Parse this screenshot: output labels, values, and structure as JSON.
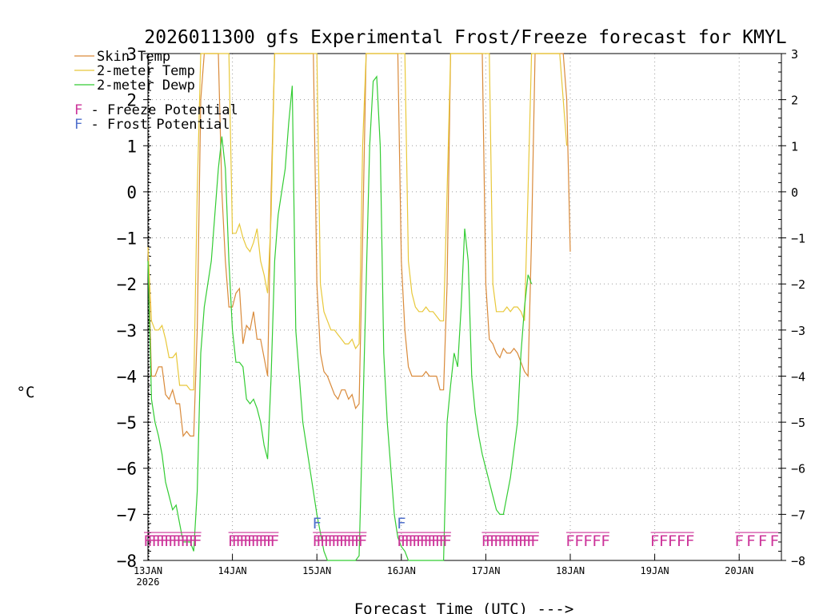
{
  "chart_data": {
    "type": "line",
    "title": "2026011300 gfs Experimental Frost/Freeze forecast for KMYL",
    "xlabel": "Forecast Time (UTC) --->",
    "ylabel": "°C",
    "ylim": [
      -8,
      3
    ],
    "xlim_hours": [
      0,
      180
    ],
    "grid": true,
    "y_ticks": [
      3,
      2,
      1,
      0,
      -1,
      -2,
      -3,
      -4,
      -5,
      -6,
      -7,
      -8
    ],
    "x_ticks": [
      {
        "hour": 0,
        "label": "13JAN",
        "sub": "2026"
      },
      {
        "hour": 24,
        "label": "14JAN",
        "sub": ""
      },
      {
        "hour": 48,
        "label": "15JAN",
        "sub": ""
      },
      {
        "hour": 72,
        "label": "16JAN",
        "sub": ""
      },
      {
        "hour": 96,
        "label": "17JAN",
        "sub": ""
      },
      {
        "hour": 120,
        "label": "18JAN",
        "sub": ""
      },
      {
        "hour": 144,
        "label": "19JAN",
        "sub": ""
      },
      {
        "hour": 168,
        "label": "20JAN",
        "sub": ""
      }
    ],
    "legend": [
      {
        "label": "Skin Temp",
        "color": "#d98a3a"
      },
      {
        "label": "2-meter Temp",
        "color": "#e8c83a"
      },
      {
        "label": "2-meter Dewp",
        "color": "#33cc33"
      }
    ],
    "potential_legend": [
      {
        "glyph": "F",
        "label": " - Freeze Potential",
        "color": "#cc3399"
      },
      {
        "glyph": "F",
        "label": " - Frost Potential",
        "color": "#4f6fcc"
      }
    ],
    "series": [
      {
        "name": "Skin Temp",
        "color": "#d98a3a",
        "points": [
          [
            0,
            -1.2
          ],
          [
            1,
            -4.0
          ],
          [
            2,
            -4.0
          ],
          [
            3,
            -3.8
          ],
          [
            4,
            -3.8
          ],
          [
            5,
            -4.4
          ],
          [
            6,
            -4.5
          ],
          [
            7,
            -4.3
          ],
          [
            8,
            -4.6
          ],
          [
            9,
            -4.6
          ],
          [
            10,
            -5.3
          ],
          [
            11,
            -5.2
          ],
          [
            12,
            -5.3
          ],
          [
            13,
            -5.3
          ],
          [
            14,
            -3.0
          ],
          [
            15,
            2.0
          ],
          [
            16,
            3.2
          ],
          [
            17,
            3.2
          ],
          [
            20,
            3.2
          ],
          [
            21,
            0.0
          ],
          [
            22,
            -1.5
          ],
          [
            23,
            -2.5
          ],
          [
            24,
            -2.5
          ],
          [
            25,
            -2.2
          ],
          [
            26,
            -2.1
          ],
          [
            27,
            -3.3
          ],
          [
            28,
            -2.9
          ],
          [
            29,
            -3.0
          ],
          [
            30,
            -2.6
          ],
          [
            31,
            -3.2
          ],
          [
            32,
            -3.2
          ],
          [
            33,
            -3.6
          ],
          [
            34,
            -4.0
          ],
          [
            35,
            0.0
          ],
          [
            36,
            3.2
          ],
          [
            47,
            3.2
          ],
          [
            48,
            -2.0
          ],
          [
            49,
            -3.5
          ],
          [
            50,
            -3.9
          ],
          [
            51,
            -4.0
          ],
          [
            52,
            -4.2
          ],
          [
            53,
            -4.4
          ],
          [
            54,
            -4.5
          ],
          [
            55,
            -4.3
          ],
          [
            56,
            -4.3
          ],
          [
            57,
            -4.5
          ],
          [
            58,
            -4.4
          ],
          [
            59,
            -4.7
          ],
          [
            60,
            -4.6
          ],
          [
            61,
            -1.0
          ],
          [
            62,
            3.2
          ],
          [
            71,
            3.2
          ],
          [
            72,
            -1.5
          ],
          [
            73,
            -3.0
          ],
          [
            74,
            -3.8
          ],
          [
            75,
            -4.0
          ],
          [
            76,
            -4.0
          ],
          [
            77,
            -4.0
          ],
          [
            78,
            -4.0
          ],
          [
            79,
            -3.9
          ],
          [
            80,
            -4.0
          ],
          [
            81,
            -4.0
          ],
          [
            82,
            -4.0
          ],
          [
            83,
            -4.3
          ],
          [
            84,
            -4.3
          ],
          [
            85,
            -2.0
          ],
          [
            86,
            3.2
          ],
          [
            95,
            3.2
          ],
          [
            96,
            -2.0
          ],
          [
            97,
            -3.2
          ],
          [
            98,
            -3.3
          ],
          [
            99,
            -3.5
          ],
          [
            100,
            -3.6
          ],
          [
            101,
            -3.4
          ],
          [
            102,
            -3.5
          ],
          [
            103,
            -3.5
          ],
          [
            104,
            -3.4
          ],
          [
            105,
            -3.5
          ],
          [
            106,
            -3.7
          ],
          [
            107,
            -3.9
          ],
          [
            108,
            -4.0
          ],
          [
            109,
            -1.0
          ],
          [
            110,
            3.2
          ],
          [
            118,
            3.2
          ],
          [
            119,
            2.0
          ],
          [
            120,
            -1.3
          ]
        ]
      },
      {
        "name": "2-meter Temp",
        "color": "#e8c83a",
        "points": [
          [
            0,
            -1.2
          ],
          [
            1,
            -2.8
          ],
          [
            2,
            -3.0
          ],
          [
            3,
            -3.0
          ],
          [
            4,
            -2.9
          ],
          [
            5,
            -3.2
          ],
          [
            6,
            -3.6
          ],
          [
            7,
            -3.6
          ],
          [
            8,
            -3.5
          ],
          [
            9,
            -4.2
          ],
          [
            10,
            -4.2
          ],
          [
            11,
            -4.2
          ],
          [
            12,
            -4.3
          ],
          [
            13,
            -4.3
          ],
          [
            14,
            0.0
          ],
          [
            15,
            3.2
          ],
          [
            23,
            3.2
          ],
          [
            24,
            -0.9
          ],
          [
            25,
            -0.9
          ],
          [
            26,
            -0.7
          ],
          [
            27,
            -1.0
          ],
          [
            28,
            -1.2
          ],
          [
            29,
            -1.3
          ],
          [
            30,
            -1.1
          ],
          [
            31,
            -0.8
          ],
          [
            32,
            -1.5
          ],
          [
            33,
            -1.8
          ],
          [
            34,
            -2.2
          ],
          [
            35,
            -0.5
          ],
          [
            36,
            3.2
          ],
          [
            48,
            3.2
          ],
          [
            49,
            -2.0
          ],
          [
            50,
            -2.6
          ],
          [
            51,
            -2.8
          ],
          [
            52,
            -3.0
          ],
          [
            53,
            -3.0
          ],
          [
            54,
            -3.1
          ],
          [
            55,
            -3.2
          ],
          [
            56,
            -3.3
          ],
          [
            57,
            -3.3
          ],
          [
            58,
            -3.2
          ],
          [
            59,
            -3.4
          ],
          [
            60,
            -3.3
          ],
          [
            61,
            1.0
          ],
          [
            62,
            3.2
          ],
          [
            73,
            3.2
          ],
          [
            74,
            -1.5
          ],
          [
            75,
            -2.2
          ],
          [
            76,
            -2.5
          ],
          [
            77,
            -2.6
          ],
          [
            78,
            -2.6
          ],
          [
            79,
            -2.5
          ],
          [
            80,
            -2.6
          ],
          [
            81,
            -2.6
          ],
          [
            82,
            -2.7
          ],
          [
            83,
            -2.8
          ],
          [
            84,
            -2.8
          ],
          [
            85,
            0.0
          ],
          [
            86,
            3.2
          ],
          [
            97,
            3.2
          ],
          [
            98,
            -2.0
          ],
          [
            99,
            -2.6
          ],
          [
            100,
            -2.6
          ],
          [
            101,
            -2.6
          ],
          [
            102,
            -2.5
          ],
          [
            103,
            -2.6
          ],
          [
            104,
            -2.5
          ],
          [
            105,
            -2.5
          ],
          [
            106,
            -2.6
          ],
          [
            107,
            -2.8
          ],
          [
            108,
            0.0
          ],
          [
            109,
            3.2
          ],
          [
            117,
            3.2
          ],
          [
            118,
            2.0
          ],
          [
            119,
            1.0
          ]
        ]
      },
      {
        "name": "2-meter Dewp",
        "color": "#33cc33",
        "points": [
          [
            0,
            -1.5
          ],
          [
            1,
            -4.5
          ],
          [
            2,
            -5.0
          ],
          [
            3,
            -5.3
          ],
          [
            4,
            -5.7
          ],
          [
            5,
            -6.3
          ],
          [
            6,
            -6.6
          ],
          [
            7,
            -6.9
          ],
          [
            8,
            -6.8
          ],
          [
            9,
            -7.2
          ],
          [
            10,
            -7.6
          ],
          [
            11,
            -7.6
          ],
          [
            12,
            -7.6
          ],
          [
            13,
            -7.8
          ],
          [
            14,
            -6.5
          ],
          [
            15,
            -3.5
          ],
          [
            16,
            -2.5
          ],
          [
            17,
            -2.0
          ],
          [
            18,
            -1.5
          ],
          [
            19,
            -0.5
          ],
          [
            20,
            0.5
          ],
          [
            21,
            1.2
          ],
          [
            22,
            0.5
          ],
          [
            23,
            -1.5
          ],
          [
            24,
            -3.0
          ],
          [
            25,
            -3.7
          ],
          [
            26,
            -3.7
          ],
          [
            27,
            -3.8
          ],
          [
            28,
            -4.5
          ],
          [
            29,
            -4.6
          ],
          [
            30,
            -4.5
          ],
          [
            31,
            -4.7
          ],
          [
            32,
            -5.0
          ],
          [
            33,
            -5.5
          ],
          [
            34,
            -5.8
          ],
          [
            35,
            -4.0
          ],
          [
            36,
            -1.5
          ],
          [
            37,
            -0.5
          ],
          [
            38,
            0.0
          ],
          [
            39,
            0.5
          ],
          [
            40,
            1.5
          ],
          [
            41,
            2.3
          ],
          [
            42,
            -3.0
          ],
          [
            43,
            -4.0
          ],
          [
            44,
            -5.0
          ],
          [
            45,
            -5.5
          ],
          [
            46,
            -6.0
          ],
          [
            47,
            -6.5
          ],
          [
            48,
            -7.0
          ],
          [
            49,
            -7.4
          ],
          [
            50,
            -7.8
          ],
          [
            51,
            -8.0
          ],
          [
            52,
            -8.0
          ],
          [
            53,
            -8.0
          ],
          [
            54,
            -8.0
          ],
          [
            55,
            -8.0
          ],
          [
            56,
            -8.0
          ],
          [
            57,
            -8.0
          ],
          [
            58,
            -8.0
          ],
          [
            59,
            -8.0
          ],
          [
            60,
            -7.9
          ],
          [
            61,
            -5.0
          ],
          [
            62,
            -2.0
          ],
          [
            63,
            1.0
          ],
          [
            64,
            2.4
          ],
          [
            65,
            2.5
          ],
          [
            66,
            1.0
          ],
          [
            67,
            -3.5
          ],
          [
            68,
            -5.0
          ],
          [
            69,
            -6.0
          ],
          [
            70,
            -7.0
          ],
          [
            71,
            -7.5
          ],
          [
            72,
            -7.7
          ],
          [
            73,
            -7.8
          ],
          [
            74,
            -8.0
          ],
          [
            75,
            -8.0
          ],
          [
            76,
            -8.0
          ],
          [
            77,
            -8.0
          ],
          [
            78,
            -8.0
          ],
          [
            79,
            -8.0
          ],
          [
            80,
            -8.0
          ],
          [
            81,
            -8.0
          ],
          [
            82,
            -8.0
          ],
          [
            83,
            -8.0
          ],
          [
            84,
            -8.0
          ],
          [
            85,
            -5.0
          ],
          [
            86,
            -4.2
          ],
          [
            87,
            -3.5
          ],
          [
            88,
            -3.8
          ],
          [
            89,
            -2.5
          ],
          [
            90,
            -0.8
          ],
          [
            91,
            -1.5
          ],
          [
            92,
            -4.0
          ],
          [
            93,
            -4.8
          ],
          [
            94,
            -5.3
          ],
          [
            95,
            -5.7
          ],
          [
            96,
            -6.0
          ],
          [
            97,
            -6.3
          ],
          [
            98,
            -6.6
          ],
          [
            99,
            -6.9
          ],
          [
            100,
            -7.0
          ],
          [
            101,
            -7.0
          ],
          [
            102,
            -6.6
          ],
          [
            103,
            -6.2
          ],
          [
            104,
            -5.6
          ],
          [
            105,
            -5.0
          ],
          [
            106,
            -3.5
          ],
          [
            107,
            -2.5
          ],
          [
            108,
            -1.8
          ],
          [
            109,
            -2.0
          ]
        ]
      }
    ],
    "freeze_rows": [
      {
        "start": 0,
        "end": 14,
        "marks": 13
      },
      {
        "start": 24,
        "end": 36,
        "marks": 12
      },
      {
        "start": 48,
        "end": 61,
        "marks": 13
      },
      {
        "start": 72,
        "end": 85,
        "marks": 13
      },
      {
        "start": 96,
        "end": 110,
        "marks": 13
      },
      {
        "start": 120,
        "end": 130,
        "marks": 5
      },
      {
        "start": 144,
        "end": 154,
        "marks": 5
      },
      {
        "start": 168,
        "end": 178,
        "marks": 4
      }
    ],
    "frost_marks": [
      {
        "hour": 48,
        "value": -7.15
      },
      {
        "hour": 72,
        "value": -7.15
      }
    ]
  }
}
